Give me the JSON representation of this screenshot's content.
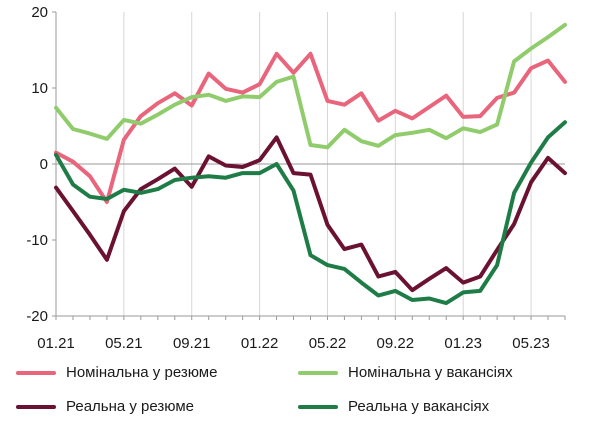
{
  "chart_data": {
    "type": "line",
    "x": [
      "01.21",
      "02.21",
      "03.21",
      "04.21",
      "05.21",
      "06.21",
      "07.21",
      "08.21",
      "09.21",
      "10.21",
      "11.21",
      "12.21",
      "01.22",
      "02.22",
      "03.22",
      "04.22",
      "05.22",
      "06.22",
      "07.22",
      "08.22",
      "09.22",
      "10.22",
      "11.22",
      "12.22",
      "01.23",
      "02.23",
      "03.23",
      "04.23",
      "05.23",
      "06.23",
      "07.23"
    ],
    "xticks": [
      "01.21",
      "05.21",
      "09.21",
      "01.22",
      "05.22",
      "09.22",
      "01.23",
      "05.23"
    ],
    "ylim": [
      -20,
      20
    ],
    "yticks": [
      20,
      10,
      0,
      -10,
      -20
    ],
    "grid": "vertical",
    "legend_position": "bottom",
    "series": [
      {
        "name": "Номінальна у резюме",
        "color": "#e8657c",
        "values": [
          1.5,
          0.3,
          -1.6,
          -5.0,
          3.2,
          6.3,
          8.0,
          9.3,
          7.7,
          11.9,
          9.9,
          9.4,
          10.5,
          14.5,
          12.0,
          14.5,
          8.3,
          7.8,
          9.3,
          5.7,
          7.0,
          6.0,
          7.5,
          9.0,
          6.2,
          6.3,
          8.7,
          9.4,
          12.6,
          13.6,
          10.8
        ]
      },
      {
        "name": "Номінальна у вакансіях",
        "color": "#90cc6c",
        "values": [
          7.4,
          4.6,
          4.0,
          3.3,
          5.8,
          5.3,
          6.5,
          7.8,
          8.8,
          9.1,
          8.3,
          8.9,
          8.8,
          10.8,
          11.5,
          2.5,
          2.2,
          4.5,
          3.0,
          2.4,
          3.8,
          4.1,
          4.5,
          3.4,
          4.7,
          4.2,
          5.2,
          13.5,
          15.2,
          16.7,
          18.3
        ]
      },
      {
        "name": "Реальна у резюме",
        "color": "#6b1233",
        "values": [
          -3.1,
          -6.2,
          -9.3,
          -12.6,
          -6.2,
          -3.3,
          -2.0,
          -0.6,
          -3.0,
          1.0,
          -0.2,
          -0.4,
          0.5,
          3.5,
          -1.2,
          -1.4,
          -8.0,
          -11.2,
          -10.6,
          -14.8,
          -14.2,
          -16.6,
          -15.1,
          -13.7,
          -15.6,
          -14.8,
          -11.3,
          -7.9,
          -2.4,
          0.8,
          -1.2
        ]
      },
      {
        "name": "Реальна у вакансіях",
        "color": "#1e7d46",
        "values": [
          1.2,
          -2.7,
          -4.3,
          -4.6,
          -3.4,
          -3.8,
          -3.3,
          -2.1,
          -1.8,
          -1.6,
          -1.8,
          -1.2,
          -1.2,
          0.0,
          -3.5,
          -12.0,
          -13.3,
          -13.8,
          -15.6,
          -17.3,
          -16.7,
          -17.9,
          -17.7,
          -18.3,
          -16.9,
          -16.7,
          -13.3,
          -3.8,
          0.2,
          3.5,
          5.5
        ]
      }
    ]
  }
}
